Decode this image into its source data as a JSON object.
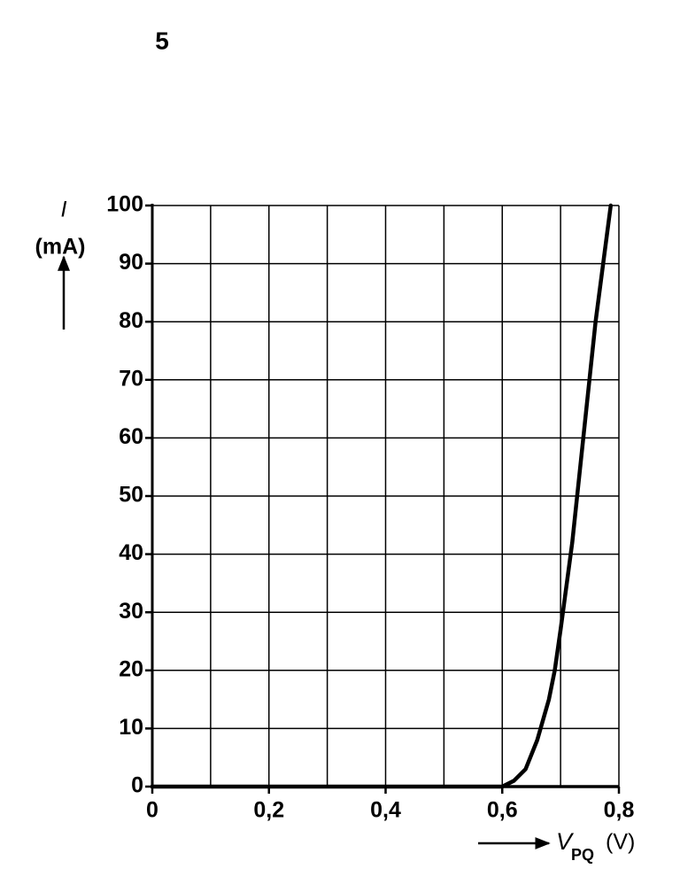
{
  "chart_data": {
    "type": "line",
    "title": "5",
    "y_label": "I",
    "y_unit": "(mA)",
    "x_label": "V",
    "x_label_subscript": "PQ",
    "x_unit": "(V)",
    "x": [
      0,
      0.6,
      0.62,
      0.64,
      0.66,
      0.68,
      0.69,
      0.7,
      0.72,
      0.74,
      0.76,
      0.786
    ],
    "series": [
      {
        "color": "#000000",
        "values": [
          0,
          0,
          1,
          3,
          8,
          15,
          20,
          27,
          42,
          61,
          80,
          100
        ]
      }
    ],
    "xlim": [
      0,
      0.8
    ],
    "ylim": [
      0,
      100
    ],
    "xticks": [
      0,
      {
        "value": 0.2,
        "label": "0,2"
      },
      {
        "value": 0.4,
        "label": "0,4"
      },
      {
        "value": 0.6,
        "label": "0,6"
      },
      {
        "value": 0.8,
        "label": "0,8"
      }
    ],
    "xminorticks": [
      0.1,
      0.3,
      0.5,
      0.7
    ],
    "yticks": [
      0,
      10,
      20,
      30,
      40,
      50,
      60,
      70,
      80,
      90,
      100
    ],
    "grid": true
  }
}
